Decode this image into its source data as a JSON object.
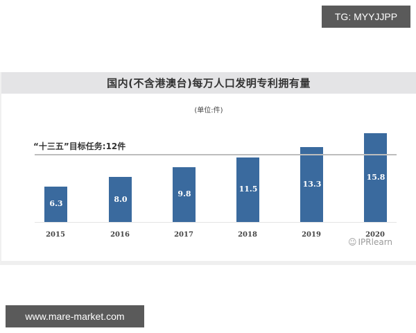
{
  "overlays": {
    "top_right_tag": "TG: MYYJJPP",
    "bottom_left_tag": "www.mare-market.com"
  },
  "chart": {
    "title": "国内(不含港澳台)每万人口发明专利拥有量",
    "unit": "(单位:件)",
    "target_label": "“十三五”目标任务:12件",
    "watermark": "IPRlearn",
    "bar_color": "#3a6a9e",
    "header_bg": "#e4e4e6"
  },
  "chart_data": {
    "type": "bar",
    "title": "国内(不含港澳台)每万人口发明专利拥有量",
    "subtitle": "(单位:件)",
    "categories": [
      "2015",
      "2016",
      "2017",
      "2018",
      "2019",
      "2020"
    ],
    "values": [
      6.3,
      8.0,
      9.8,
      11.5,
      13.3,
      15.8
    ],
    "value_labels": [
      "6.3",
      "8.0",
      "9.8",
      "11.5",
      "13.3",
      "15.8"
    ],
    "xlabel": "",
    "ylabel": "件",
    "ylim": [
      0,
      16
    ],
    "grid": false,
    "annotations": [
      {
        "type": "hline",
        "y": 12,
        "label": "“十三五”目标任务:12件"
      }
    ],
    "legend": null
  }
}
